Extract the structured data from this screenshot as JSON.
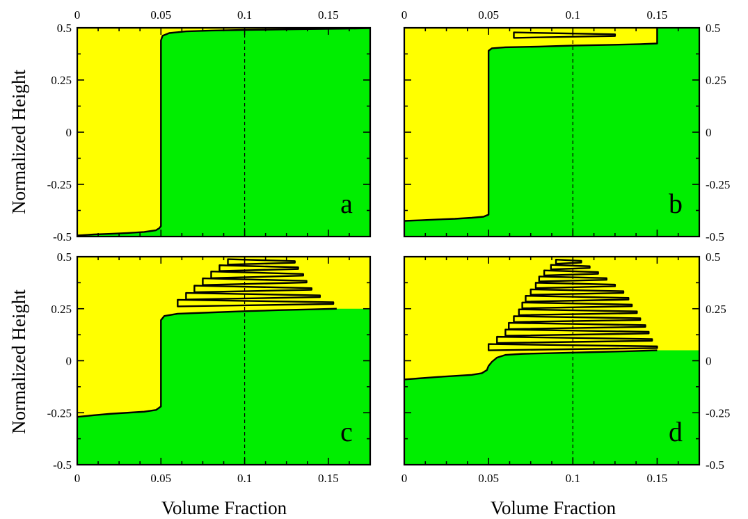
{
  "colors": {
    "upper_region": "#ffff00",
    "lower_region": "#00ee00",
    "interface": "#000000",
    "background": "#ffffff"
  },
  "axes_text": {
    "xlabel": "Volume Fraction",
    "ylabel": "Normalized Height"
  },
  "chart_data": [
    {
      "type": "area",
      "panel_label": "a",
      "xlim": [
        0,
        0.175
      ],
      "ylim": [
        -0.5,
        0.5
      ],
      "x_ticks": [
        "0",
        "0.05",
        "0.1",
        "0.15"
      ],
      "y_ticks": [
        "-0.5",
        "-0.25",
        "0",
        "0.25",
        "0.5"
      ],
      "x_tick_position": "top",
      "y_tick_position": "left",
      "reference_line_x": 0.1,
      "interface": [
        [
          0,
          -0.495
        ],
        [
          0.01,
          -0.49
        ],
        [
          0.02,
          -0.487
        ],
        [
          0.03,
          -0.483
        ],
        [
          0.04,
          -0.478
        ],
        [
          0.047,
          -0.47
        ],
        [
          0.049,
          -0.46
        ],
        [
          0.05,
          -0.45
        ],
        [
          0.05,
          0.44
        ],
        [
          0.051,
          0.462
        ],
        [
          0.055,
          0.475
        ],
        [
          0.065,
          0.483
        ],
        [
          0.08,
          0.487
        ],
        [
          0.1,
          0.49
        ],
        [
          0.13,
          0.493
        ],
        [
          0.16,
          0.496
        ],
        [
          0.175,
          0.498
        ]
      ],
      "fingers": []
    },
    {
      "type": "area",
      "panel_label": "b",
      "xlim": [
        0,
        0.175
      ],
      "ylim": [
        -0.5,
        0.5
      ],
      "x_ticks": [
        "0",
        "0.05",
        "0.1",
        "0.15"
      ],
      "y_ticks": [
        "0.5",
        "0.25",
        "0",
        "-0.25",
        "-0.5"
      ],
      "x_tick_position": "top",
      "y_tick_position": "right",
      "reference_line_x": 0.1,
      "interface": [
        [
          0,
          -0.425
        ],
        [
          0.01,
          -0.422
        ],
        [
          0.02,
          -0.418
        ],
        [
          0.03,
          -0.415
        ],
        [
          0.04,
          -0.41
        ],
        [
          0.047,
          -0.405
        ],
        [
          0.05,
          -0.395
        ],
        [
          0.05,
          0.39
        ],
        [
          0.052,
          0.402
        ],
        [
          0.06,
          0.407
        ],
        [
          0.08,
          0.41
        ],
        [
          0.1,
          0.415
        ],
        [
          0.12,
          0.418
        ],
        [
          0.14,
          0.422
        ],
        [
          0.15,
          0.425
        ],
        [
          0.15,
          0.5
        ]
      ],
      "fingers": [
        [
          0.065,
          0.125,
          0.465,
          0.013
        ]
      ]
    },
    {
      "type": "area",
      "panel_label": "c",
      "xlim": [
        0,
        0.175
      ],
      "ylim": [
        -0.5,
        0.5
      ],
      "x_ticks": [
        "0",
        "0.05",
        "0.1",
        "0.15"
      ],
      "y_ticks": [
        "-0.5",
        "-0.25",
        "0",
        "0.25",
        "0.5"
      ],
      "x_tick_position": "bottom",
      "y_tick_position": "left",
      "reference_line_x": 0.1,
      "interface": [
        [
          0,
          -0.27
        ],
        [
          0.01,
          -0.262
        ],
        [
          0.02,
          -0.255
        ],
        [
          0.03,
          -0.25
        ],
        [
          0.04,
          -0.245
        ],
        [
          0.047,
          -0.237
        ],
        [
          0.05,
          -0.22
        ],
        [
          0.05,
          0.195
        ],
        [
          0.052,
          0.215
        ],
        [
          0.06,
          0.226
        ],
        [
          0.08,
          0.232
        ],
        [
          0.1,
          0.238
        ],
        [
          0.12,
          0.243
        ],
        [
          0.14,
          0.247
        ],
        [
          0.155,
          0.25
        ]
      ],
      "fingers": [
        [
          0.06,
          0.153,
          0.277,
          0.016
        ],
        [
          0.065,
          0.145,
          0.31,
          0.016
        ],
        [
          0.07,
          0.14,
          0.345,
          0.016
        ],
        [
          0.075,
          0.137,
          0.38,
          0.016
        ],
        [
          0.08,
          0.135,
          0.413,
          0.016
        ],
        [
          0.085,
          0.132,
          0.445,
          0.014
        ],
        [
          0.09,
          0.13,
          0.475,
          0.013
        ]
      ]
    },
    {
      "type": "area",
      "panel_label": "d",
      "xlim": [
        0,
        0.175
      ],
      "ylim": [
        -0.5,
        0.5
      ],
      "x_ticks": [
        "0",
        "0.05",
        "0.1",
        "0.15"
      ],
      "y_ticks": [
        "0.5",
        "0.25",
        "0",
        "-0.25",
        "-0.5"
      ],
      "x_tick_position": "bottom",
      "y_tick_position": "right",
      "reference_line_x": 0.1,
      "interface": [
        [
          0,
          -0.09
        ],
        [
          0.01,
          -0.084
        ],
        [
          0.02,
          -0.078
        ],
        [
          0.03,
          -0.073
        ],
        [
          0.04,
          -0.068
        ],
        [
          0.046,
          -0.06
        ],
        [
          0.049,
          -0.045
        ],
        [
          0.05,
          -0.025
        ],
        [
          0.052,
          -0.005
        ],
        [
          0.055,
          0.015
        ],
        [
          0.06,
          0.028
        ],
        [
          0.07,
          0.033
        ],
        [
          0.09,
          0.037
        ],
        [
          0.11,
          0.041
        ],
        [
          0.13,
          0.045
        ],
        [
          0.15,
          0.05
        ]
      ],
      "fingers": [
        [
          0.05,
          0.15,
          0.065,
          0.015
        ],
        [
          0.055,
          0.147,
          0.1,
          0.015
        ],
        [
          0.06,
          0.145,
          0.135,
          0.015
        ],
        [
          0.062,
          0.143,
          0.167,
          0.015
        ],
        [
          0.065,
          0.14,
          0.2,
          0.014
        ],
        [
          0.068,
          0.138,
          0.233,
          0.014
        ],
        [
          0.07,
          0.135,
          0.266,
          0.014
        ],
        [
          0.072,
          0.133,
          0.298,
          0.014
        ],
        [
          0.075,
          0.13,
          0.33,
          0.013
        ],
        [
          0.078,
          0.125,
          0.362,
          0.013
        ],
        [
          0.08,
          0.12,
          0.393,
          0.012
        ],
        [
          0.083,
          0.115,
          0.422,
          0.012
        ],
        [
          0.087,
          0.11,
          0.45,
          0.011
        ],
        [
          0.09,
          0.105,
          0.476,
          0.01
        ]
      ]
    }
  ]
}
